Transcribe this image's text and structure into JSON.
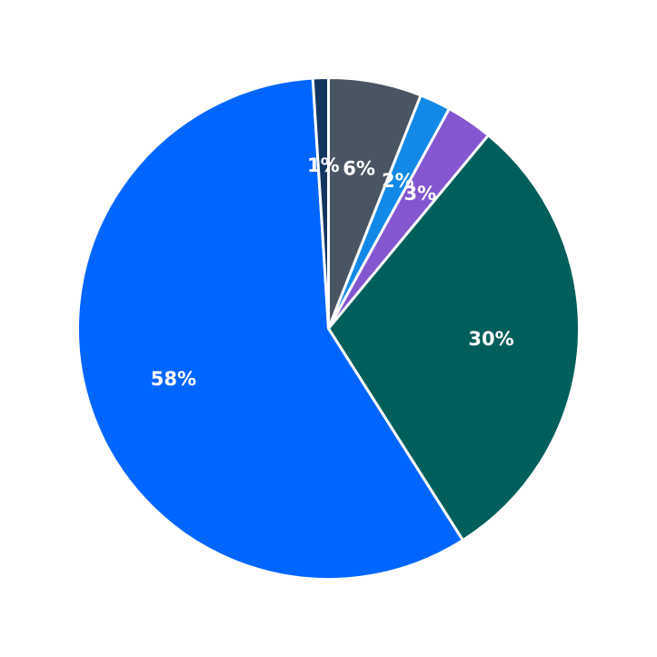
{
  "chart_data": {
    "type": "pie",
    "title": "",
    "start": "top",
    "direction": "clockwise",
    "slices": [
      {
        "label": "6%",
        "value": 6,
        "color": "#4a5563"
      },
      {
        "label": "2%",
        "value": 2,
        "color": "#1289e6"
      },
      {
        "label": "3%",
        "value": 3,
        "color": "#8456d0"
      },
      {
        "label": "30%",
        "value": 30,
        "color": "#005f5b"
      },
      {
        "label": "58%",
        "value": 58,
        "color": "#0066ff"
      },
      {
        "label": "1%",
        "value": 1,
        "color": "#13365f"
      }
    ]
  }
}
